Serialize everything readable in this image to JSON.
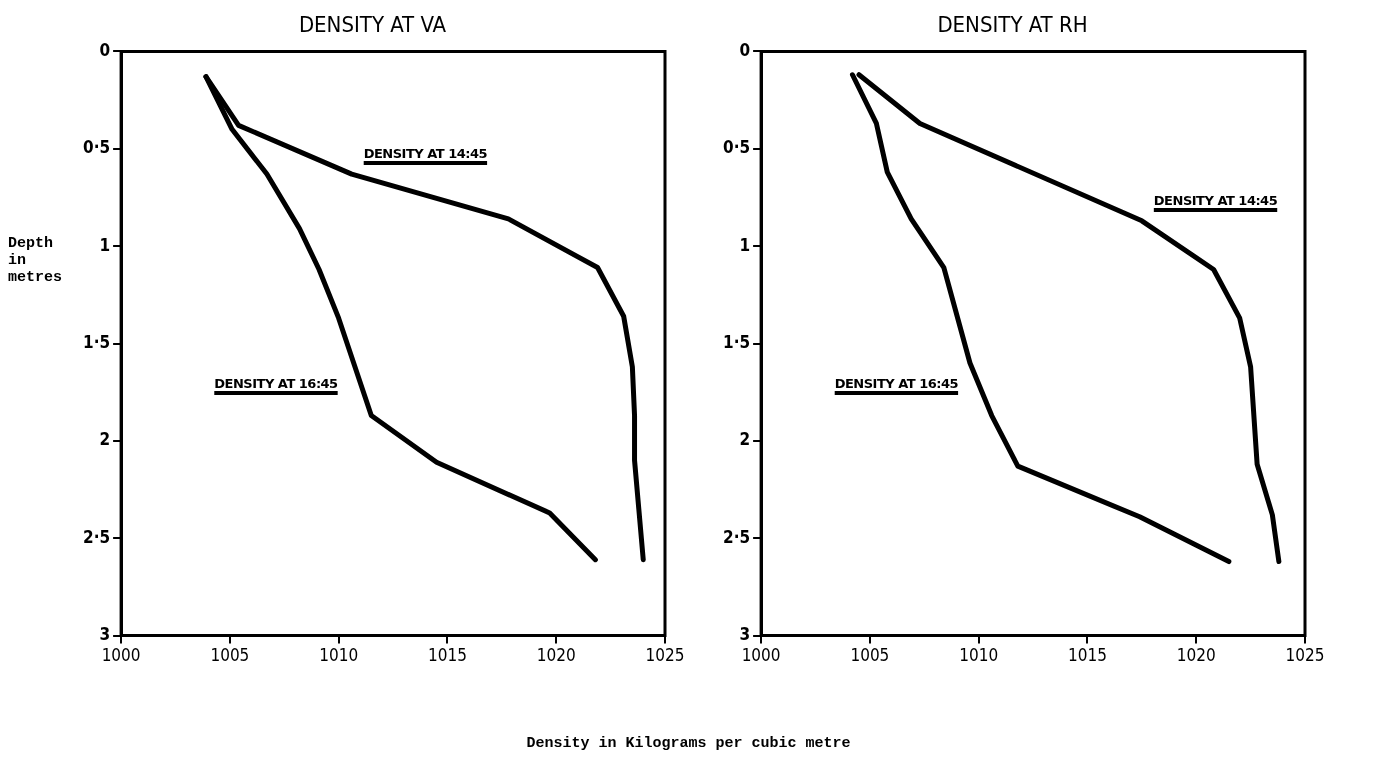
{
  "chart_data": [
    {
      "type": "line",
      "title": "DENSITY AT VA",
      "xlabel": "Density in Kilograms per cubic metre",
      "ylabel": "Depth\nin\nmetres",
      "xlim": [
        1000,
        1025
      ],
      "xticks": [
        1000,
        1005,
        1010,
        1015,
        1020,
        1025
      ],
      "ylim": [
        3,
        0
      ],
      "yticks": [
        0,
        {
          "value": 0.5,
          "label": "0·5"
        },
        1,
        {
          "value": 1.5,
          "label": "1·5"
        },
        2,
        {
          "value": 2.5,
          "label": "2·5"
        },
        3
      ],
      "grid": false,
      "legend": false,
      "marker": "none",
      "line_style": "solid",
      "series": [
        {
          "name": "DENSITY AT 14:45",
          "color": "#000000",
          "x": [
            1003.9,
            1005.4,
            1010.6,
            1017.8,
            1021.9,
            1023.1,
            1023.5,
            1023.6,
            1023.6,
            1024.0
          ],
          "values": [
            0.13,
            0.38,
            0.63,
            0.86,
            1.11,
            1.36,
            1.62,
            1.87,
            2.1,
            2.61
          ]
        },
        {
          "name": "DENSITY AT 16:45",
          "color": "#000000",
          "x": [
            1003.9,
            1005.1,
            1006.7,
            1008.2,
            1009.1,
            1010.0,
            1011.5,
            1014.5,
            1019.7,
            1021.8
          ],
          "values": [
            0.13,
            0.4,
            0.63,
            0.91,
            1.12,
            1.37,
            1.87,
            2.11,
            2.37,
            2.61
          ]
        }
      ]
    },
    {
      "type": "line",
      "title": "DENSITY AT RH",
      "xlim": [
        1000,
        1025
      ],
      "xticks": [
        1000,
        1005,
        1010,
        1015,
        1020,
        1025
      ],
      "ylim": [
        3,
        0
      ],
      "yticks": [
        0,
        {
          "value": 0.5,
          "label": "0·5"
        },
        1,
        {
          "value": 1.5,
          "label": "1·5"
        },
        2,
        {
          "value": 2.5,
          "label": "2·5"
        },
        3
      ],
      "grid": false,
      "legend": false,
      "marker": "none",
      "line_style": "solid",
      "series": [
        {
          "name": "DENSITY AT 14:45",
          "color": "#000000",
          "x": [
            1004.5,
            1007.3,
            1017.5,
            1020.8,
            1022.0,
            1022.5,
            1022.8,
            1023.5,
            1023.8
          ],
          "values": [
            0.12,
            0.37,
            0.87,
            1.12,
            1.37,
            1.62,
            2.12,
            2.38,
            2.62
          ]
        },
        {
          "name": "DENSITY AT 16:45",
          "color": "#000000",
          "x": [
            1004.2,
            1005.3,
            1005.8,
            1006.9,
            1008.4,
            1009.6,
            1010.6,
            1011.8,
            1017.4,
            1021.5
          ],
          "values": [
            0.12,
            0.37,
            0.62,
            0.86,
            1.11,
            1.6,
            1.87,
            2.13,
            2.39,
            2.62
          ]
        }
      ]
    }
  ]
}
